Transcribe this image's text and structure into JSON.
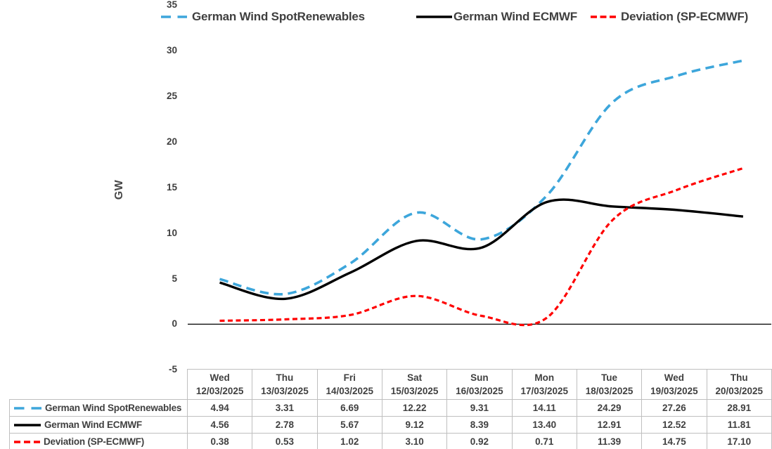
{
  "chart_data": {
    "type": "line",
    "title": "",
    "ylabel": "GW",
    "ylim": [
      -5,
      35
    ],
    "yticks": [
      35,
      30,
      25,
      20,
      15,
      10,
      5,
      0,
      -5
    ],
    "grid": false,
    "legend_position": "top",
    "x_categories": [
      {
        "day": "Wed",
        "date": "12/03/2025"
      },
      {
        "day": "Thu",
        "date": "13/03/2025"
      },
      {
        "day": "Fri",
        "date": "14/03/2025"
      },
      {
        "day": "Sat",
        "date": "15/03/2025"
      },
      {
        "day": "Sun",
        "date": "16/03/2025"
      },
      {
        "day": "Mon",
        "date": "17/03/2025"
      },
      {
        "day": "Tue",
        "date": "18/03/2025"
      },
      {
        "day": "Wed",
        "date": "19/03/2025"
      },
      {
        "day": "Thu",
        "date": "20/03/2025"
      }
    ],
    "series": [
      {
        "name": "German Wind SpotRenewables",
        "color": "#3DA6DB",
        "line_style": "long-dash",
        "values": [
          4.94,
          3.31,
          6.69,
          12.22,
          9.31,
          14.11,
          24.29,
          27.26,
          28.91
        ]
      },
      {
        "name": "German Wind ECMWF",
        "color": "#000000",
        "line_style": "solid",
        "values": [
          4.56,
          2.78,
          5.67,
          9.12,
          8.39,
          13.4,
          12.91,
          12.52,
          11.81
        ]
      },
      {
        "name": "Deviation (SP-ECMWF)",
        "color": "#FF0000",
        "line_style": "short-dash",
        "values": [
          0.38,
          0.53,
          1.02,
          3.1,
          0.92,
          0.71,
          11.39,
          14.75,
          17.1
        ]
      }
    ],
    "axis_color": "#000000",
    "text_color": "#3F3F3F",
    "table_border_color": "#BFBFBF"
  },
  "table": {
    "rows": [
      {
        "label": "German Wind SpotRenewables",
        "values": [
          "4.94",
          "3.31",
          "6.69",
          "12.22",
          "9.31",
          "14.11",
          "24.29",
          "27.26",
          "28.91"
        ]
      },
      {
        "label": "German Wind ECMWF",
        "values": [
          "4.56",
          "2.78",
          "5.67",
          "9.12",
          "8.39",
          "13.40",
          "12.91",
          "12.52",
          "11.81"
        ]
      },
      {
        "label": "Deviation (SP-ECMWF)",
        "values": [
          "0.38",
          "0.53",
          "1.02",
          "3.10",
          "0.92",
          "0.71",
          "11.39",
          "14.75",
          "17.10"
        ]
      }
    ]
  }
}
